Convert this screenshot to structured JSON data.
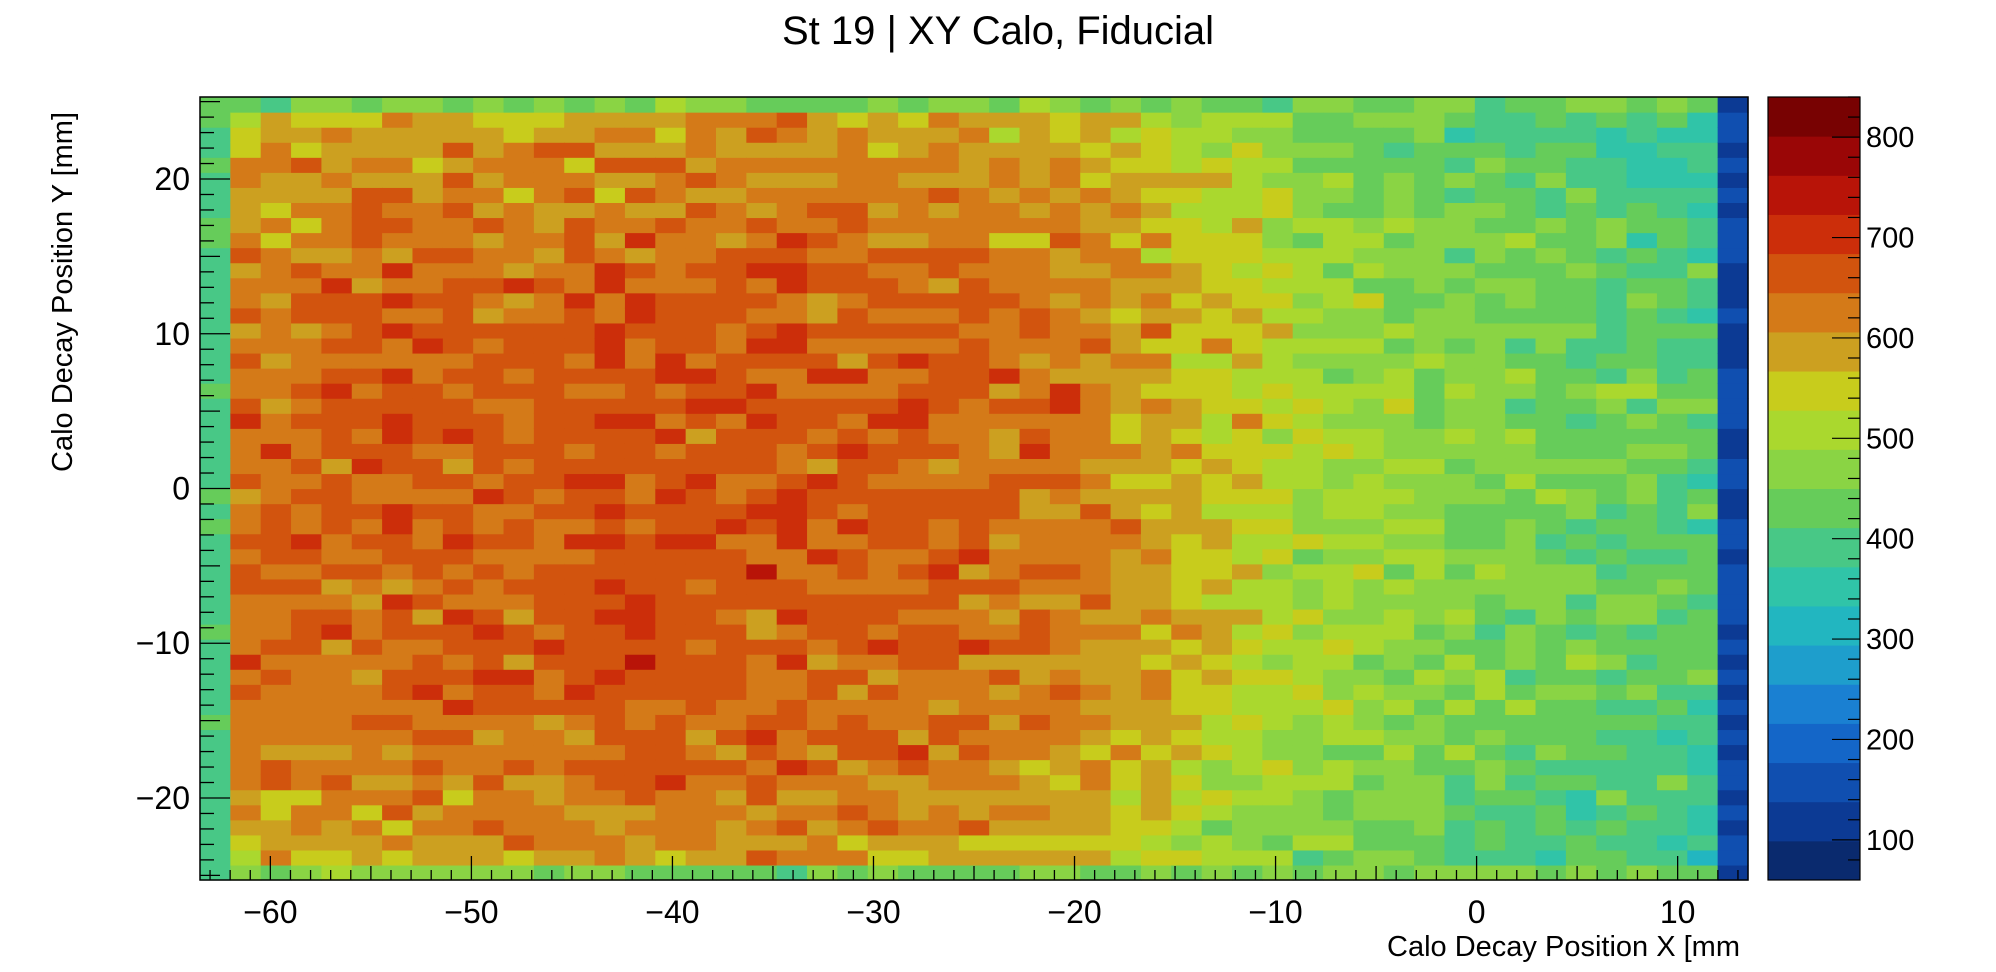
{
  "chart_data": {
    "type": "heatmap",
    "title": "St 19 | XY Calo, Fiducial",
    "xlabel": "Calo Decay Position X [mm",
    "ylabel": "Calo Decay Position Y [mm]",
    "xlim": [
      -63.5,
      13.5
    ],
    "ylim": [
      -25.3,
      25.3
    ],
    "x_ticks": [
      -60,
      -50,
      -40,
      -30,
      -20,
      -10,
      0,
      10
    ],
    "y_ticks": [
      -20,
      -10,
      0,
      10,
      20
    ],
    "x_tick_labels": [
      "−60",
      "−50",
      "−40",
      "−30",
      "−20",
      "−10",
      "0",
      "10"
    ],
    "y_tick_labels": [
      "−20",
      "−10",
      "0",
      "10",
      "20"
    ],
    "x_bins": 51,
    "y_bins": 52,
    "zlim": [
      60,
      840
    ],
    "z_ticks": [
      100,
      200,
      300,
      400,
      500,
      600,
      700,
      800
    ],
    "z_tick_labels": [
      "100",
      "200",
      "300",
      "400",
      "500",
      "600",
      "700",
      "800"
    ],
    "z_shape": {
      "edge_column_left": 400,
      "edge_column_right": 140,
      "edge_row": 455,
      "gradient_x": [
        [
          -62,
          640
        ],
        [
          -40,
          665
        ],
        [
          -30,
          660
        ],
        [
          -20,
          630
        ],
        [
          -14,
          575
        ],
        [
          -8,
          500
        ],
        [
          0,
          465
        ],
        [
          8,
          430
        ],
        [
          12,
          405
        ]
      ]
    },
    "palette": [
      "#0a2a6e",
      "#0c3a94",
      "#104fb0",
      "#1466c8",
      "#1a80d2",
      "#1e9ecc",
      "#22b6c0",
      "#30c4a8",
      "#48c886",
      "#66cc5a",
      "#8ad444",
      "#aad82e",
      "#c8cc1c",
      "#cca020",
      "#d47a18",
      "#d2540e",
      "#cc2e0a",
      "#b81408",
      "#9a0606",
      "#780202"
    ]
  }
}
